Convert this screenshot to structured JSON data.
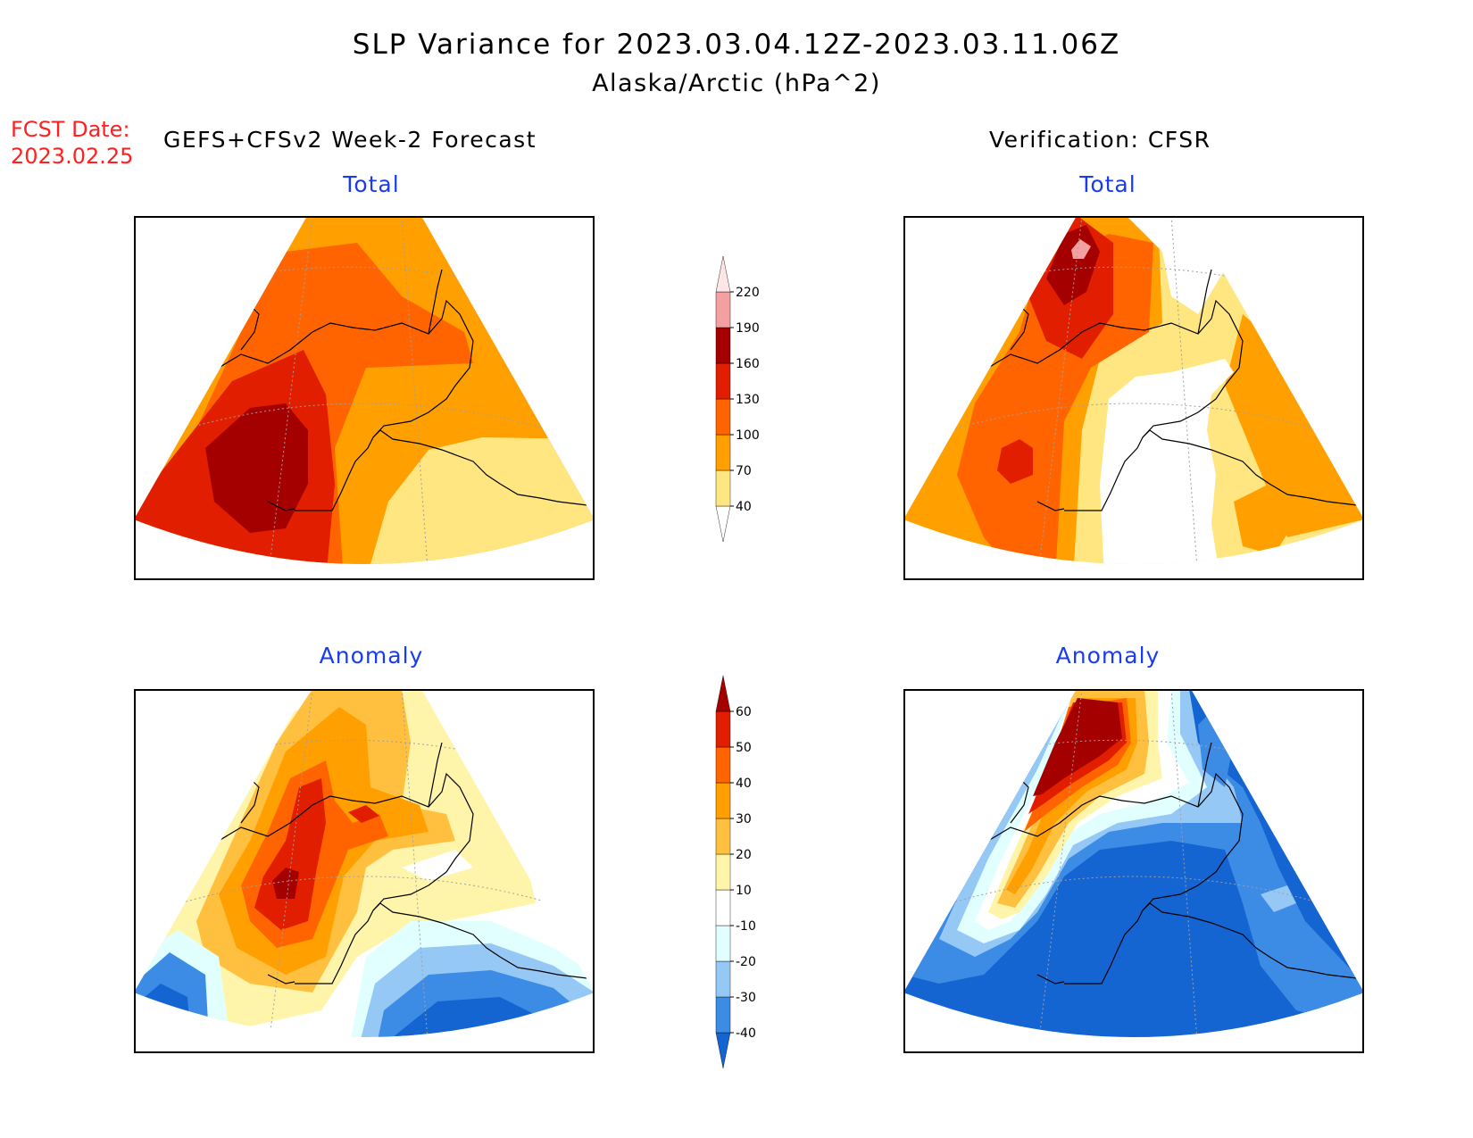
{
  "title": "SLP Variance for 2023.03.04.12Z-2023.03.11.06Z",
  "subtitle": "Alaska/Arctic (hPa^2)",
  "fcst": {
    "label": "FCST Date:",
    "date": "2023.02.25"
  },
  "left_header": "GEFS+CFSv2 Week-2 Forecast",
  "right_header": "Verification: CFSR",
  "panels": {
    "fc_total": {
      "title": "Total"
    },
    "ver_total": {
      "title": "Total"
    },
    "fc_anom": {
      "title": "Anomaly"
    },
    "ver_anom": {
      "title": "Anomaly"
    }
  },
  "colorbar_total": {
    "levels": [
      "40",
      "70",
      "100",
      "130",
      "160",
      "190",
      "220"
    ],
    "colors": [
      "#ffffff",
      "#ffe680",
      "#ffa000",
      "#ff6400",
      "#e11e00",
      "#a50000",
      "#f5a0a0",
      "#ffe6e6"
    ]
  },
  "colorbar_anom": {
    "levels": [
      "-40",
      "-30",
      "-20",
      "-10",
      "10",
      "20",
      "30",
      "40",
      "50",
      "60"
    ],
    "colors": [
      "#1464d2",
      "#3c8ce6",
      "#96c8f5",
      "#e1ffff",
      "#ffffff",
      "#fff5aa",
      "#ffc040",
      "#ffa000",
      "#ff6400",
      "#e11e00",
      "#a50000"
    ]
  },
  "colors": {
    "title_blue": "#1a3cf0",
    "fcst_red": "#ff2020"
  }
}
